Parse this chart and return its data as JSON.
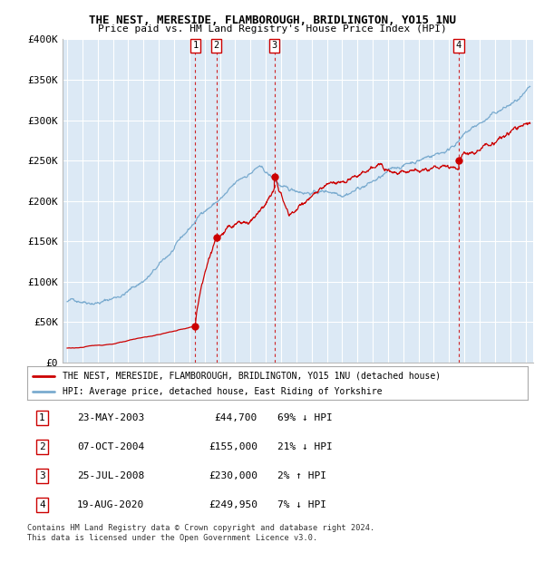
{
  "title": "THE NEST, MERESIDE, FLAMBOROUGH, BRIDLINGTON, YO15 1NU",
  "subtitle": "Price paid vs. HM Land Registry's House Price Index (HPI)",
  "legend_line1": "THE NEST, MERESIDE, FLAMBOROUGH, BRIDLINGTON, YO15 1NU (detached house)",
  "legend_line2": "HPI: Average price, detached house, East Riding of Yorkshire",
  "footer1": "Contains HM Land Registry data © Crown copyright and database right 2024.",
  "footer2": "This data is licensed under the Open Government Licence v3.0.",
  "transactions": [
    {
      "num": 1,
      "date": "23-MAY-2003",
      "price": 44700,
      "hpi_diff": "69% ↓ HPI"
    },
    {
      "num": 2,
      "date": "07-OCT-2004",
      "price": 155000,
      "hpi_diff": "21% ↓ HPI"
    },
    {
      "num": 3,
      "date": "25-JUL-2008",
      "price": 230000,
      "hpi_diff": "2% ↑ HPI"
    },
    {
      "num": 4,
      "date": "19-AUG-2020",
      "price": 249950,
      "hpi_diff": "7% ↓ HPI"
    }
  ],
  "transaction_dates_decimal": [
    2003.388,
    2004.768,
    2008.559,
    2020.635
  ],
  "transaction_prices": [
    44700,
    155000,
    230000,
    249950
  ],
  "plot_bg": "#dce9f5",
  "grid_color": "#ffffff",
  "line_color_red": "#cc0000",
  "line_color_blue": "#7aabcf",
  "ylim": [
    0,
    400000
  ],
  "yticks": [
    0,
    50000,
    100000,
    150000,
    200000,
    250000,
    300000,
    350000,
    400000
  ],
  "ytick_labels": [
    "£0",
    "£50K",
    "£100K",
    "£150K",
    "£200K",
    "£250K",
    "£300K",
    "£350K",
    "£400K"
  ],
  "xlim_start": 1994.7,
  "xlim_end": 2025.5
}
